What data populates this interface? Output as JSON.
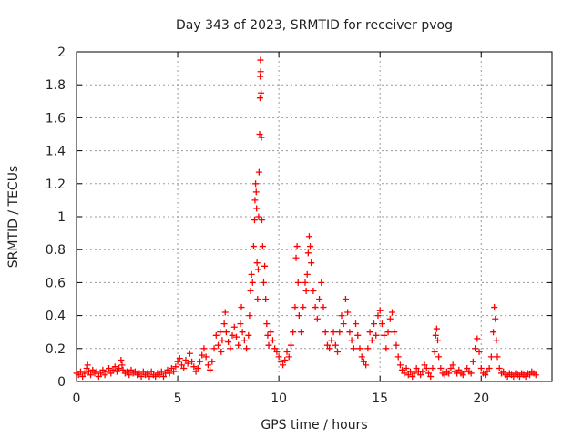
{
  "chart_data": {
    "type": "scatter",
    "title": "Day 343 of 2023, SRMTID for receiver pvog",
    "xlabel": "GPS time / hours",
    "ylabel": "SRMTID / TECUs",
    "xlim": [
      0,
      23.5
    ],
    "ylim": [
      0,
      2
    ],
    "xticks": [
      "0",
      "5",
      "10",
      "15",
      "20"
    ],
    "xtick_values": [
      0,
      5,
      10,
      15,
      20
    ],
    "yticks": [
      "0",
      "0.2",
      "0.4",
      "0.6",
      "0.8",
      "1",
      "1.2",
      "1.4",
      "1.6",
      "1.8",
      "2"
    ],
    "ytick_values": [
      0,
      0.2,
      0.4,
      0.6,
      0.8,
      1.0,
      1.2,
      1.4,
      1.6,
      1.8,
      2.0
    ],
    "grid": true,
    "marker": "+",
    "color": "#ff0000",
    "series": [
      {
        "name": "SRMTID",
        "points": [
          [
            0.0,
            0.05
          ],
          [
            0.1,
            0.04
          ],
          [
            0.2,
            0.06
          ],
          [
            0.3,
            0.03
          ],
          [
            0.4,
            0.05
          ],
          [
            0.5,
            0.08
          ],
          [
            0.55,
            0.1
          ],
          [
            0.6,
            0.06
          ],
          [
            0.7,
            0.04
          ],
          [
            0.8,
            0.07
          ],
          [
            0.9,
            0.05
          ],
          [
            1.0,
            0.06
          ],
          [
            1.1,
            0.03
          ],
          [
            1.2,
            0.05
          ],
          [
            1.3,
            0.07
          ],
          [
            1.4,
            0.04
          ],
          [
            1.5,
            0.06
          ],
          [
            1.6,
            0.08
          ],
          [
            1.7,
            0.05
          ],
          [
            1.8,
            0.07
          ],
          [
            1.9,
            0.09
          ],
          [
            2.0,
            0.06
          ],
          [
            2.1,
            0.08
          ],
          [
            2.2,
            0.13
          ],
          [
            2.25,
            0.1
          ],
          [
            2.3,
            0.07
          ],
          [
            2.4,
            0.05
          ],
          [
            2.5,
            0.06
          ],
          [
            2.6,
            0.04
          ],
          [
            2.7,
            0.07
          ],
          [
            2.8,
            0.05
          ],
          [
            2.9,
            0.06
          ],
          [
            3.0,
            0.04
          ],
          [
            3.1,
            0.05
          ],
          [
            3.2,
            0.03
          ],
          [
            3.3,
            0.06
          ],
          [
            3.4,
            0.04
          ],
          [
            3.5,
            0.05
          ],
          [
            3.6,
            0.03
          ],
          [
            3.7,
            0.06
          ],
          [
            3.8,
            0.04
          ],
          [
            3.9,
            0.03
          ],
          [
            4.0,
            0.05
          ],
          [
            4.1,
            0.04
          ],
          [
            4.2,
            0.06
          ],
          [
            4.3,
            0.03
          ],
          [
            4.4,
            0.05
          ],
          [
            4.5,
            0.07
          ],
          [
            4.6,
            0.05
          ],
          [
            4.7,
            0.08
          ],
          [
            4.8,
            0.06
          ],
          [
            4.9,
            0.09
          ],
          [
            5.0,
            0.12
          ],
          [
            5.1,
            0.14
          ],
          [
            5.2,
            0.1
          ],
          [
            5.3,
            0.08
          ],
          [
            5.4,
            0.13
          ],
          [
            5.5,
            0.11
          ],
          [
            5.6,
            0.17
          ],
          [
            5.7,
            0.12
          ],
          [
            5.8,
            0.09
          ],
          [
            5.9,
            0.06
          ],
          [
            6.0,
            0.08
          ],
          [
            6.1,
            0.12
          ],
          [
            6.2,
            0.16
          ],
          [
            6.3,
            0.2
          ],
          [
            6.4,
            0.15
          ],
          [
            6.5,
            0.1
          ],
          [
            6.6,
            0.07
          ],
          [
            6.7,
            0.12
          ],
          [
            6.8,
            0.2
          ],
          [
            6.9,
            0.28
          ],
          [
            7.0,
            0.22
          ],
          [
            7.1,
            0.3
          ],
          [
            7.15,
            0.18
          ],
          [
            7.2,
            0.25
          ],
          [
            7.3,
            0.35
          ],
          [
            7.35,
            0.42
          ],
          [
            7.4,
            0.3
          ],
          [
            7.5,
            0.24
          ],
          [
            7.6,
            0.2
          ],
          [
            7.7,
            0.28
          ],
          [
            7.8,
            0.33
          ],
          [
            7.9,
            0.27
          ],
          [
            8.0,
            0.22
          ],
          [
            8.1,
            0.35
          ],
          [
            8.15,
            0.45
          ],
          [
            8.2,
            0.3
          ],
          [
            8.3,
            0.25
          ],
          [
            8.4,
            0.2
          ],
          [
            8.5,
            0.28
          ],
          [
            8.55,
            0.4
          ],
          [
            8.6,
            0.55
          ],
          [
            8.65,
            0.65
          ],
          [
            8.7,
            0.6
          ],
          [
            8.75,
            0.82
          ],
          [
            8.8,
            0.98
          ],
          [
            8.82,
            1.1
          ],
          [
            8.85,
            1.2
          ],
          [
            8.88,
            1.15
          ],
          [
            8.9,
            1.05
          ],
          [
            8.92,
            0.72
          ],
          [
            8.95,
            0.5
          ],
          [
            8.98,
            0.68
          ],
          [
            9.0,
            1.0
          ],
          [
            9.02,
            1.27
          ],
          [
            9.05,
            1.5
          ],
          [
            9.07,
            1.72
          ],
          [
            9.08,
            1.85
          ],
          [
            9.09,
            1.95
          ],
          [
            9.1,
            1.88
          ],
          [
            9.12,
            1.75
          ],
          [
            9.14,
            1.48
          ],
          [
            9.16,
            0.98
          ],
          [
            9.2,
            0.82
          ],
          [
            9.25,
            0.6
          ],
          [
            9.3,
            0.7
          ],
          [
            9.35,
            0.5
          ],
          [
            9.4,
            0.35
          ],
          [
            9.45,
            0.28
          ],
          [
            9.5,
            0.22
          ],
          [
            9.6,
            0.3
          ],
          [
            9.7,
            0.25
          ],
          [
            9.8,
            0.2
          ],
          [
            9.9,
            0.18
          ],
          [
            10.0,
            0.15
          ],
          [
            10.1,
            0.12
          ],
          [
            10.2,
            0.1
          ],
          [
            10.3,
            0.13
          ],
          [
            10.4,
            0.18
          ],
          [
            10.5,
            0.15
          ],
          [
            10.6,
            0.22
          ],
          [
            10.7,
            0.3
          ],
          [
            10.8,
            0.45
          ],
          [
            10.85,
            0.75
          ],
          [
            10.9,
            0.82
          ],
          [
            10.95,
            0.6
          ],
          [
            11.0,
            0.4
          ],
          [
            11.1,
            0.3
          ],
          [
            11.2,
            0.45
          ],
          [
            11.3,
            0.6
          ],
          [
            11.35,
            0.55
          ],
          [
            11.4,
            0.65
          ],
          [
            11.45,
            0.78
          ],
          [
            11.5,
            0.88
          ],
          [
            11.55,
            0.82
          ],
          [
            11.6,
            0.72
          ],
          [
            11.7,
            0.55
          ],
          [
            11.8,
            0.45
          ],
          [
            11.9,
            0.38
          ],
          [
            12.0,
            0.5
          ],
          [
            12.1,
            0.6
          ],
          [
            12.2,
            0.45
          ],
          [
            12.3,
            0.3
          ],
          [
            12.4,
            0.22
          ],
          [
            12.5,
            0.2
          ],
          [
            12.6,
            0.25
          ],
          [
            12.7,
            0.3
          ],
          [
            12.8,
            0.22
          ],
          [
            12.9,
            0.18
          ],
          [
            13.0,
            0.3
          ],
          [
            13.1,
            0.4
          ],
          [
            13.2,
            0.35
          ],
          [
            13.3,
            0.5
          ],
          [
            13.4,
            0.42
          ],
          [
            13.5,
            0.3
          ],
          [
            13.6,
            0.25
          ],
          [
            13.7,
            0.2
          ],
          [
            13.8,
            0.35
          ],
          [
            13.9,
            0.28
          ],
          [
            14.0,
            0.2
          ],
          [
            14.1,
            0.15
          ],
          [
            14.2,
            0.12
          ],
          [
            14.3,
            0.1
          ],
          [
            14.4,
            0.2
          ],
          [
            14.5,
            0.3
          ],
          [
            14.6,
            0.25
          ],
          [
            14.7,
            0.35
          ],
          [
            14.8,
            0.28
          ],
          [
            14.9,
            0.4
          ],
          [
            15.0,
            0.43
          ],
          [
            15.1,
            0.35
          ],
          [
            15.2,
            0.28
          ],
          [
            15.3,
            0.2
          ],
          [
            15.4,
            0.3
          ],
          [
            15.5,
            0.38
          ],
          [
            15.6,
            0.42
          ],
          [
            15.7,
            0.3
          ],
          [
            15.8,
            0.22
          ],
          [
            15.9,
            0.15
          ],
          [
            16.0,
            0.1
          ],
          [
            16.1,
            0.07
          ],
          [
            16.2,
            0.05
          ],
          [
            16.3,
            0.08
          ],
          [
            16.4,
            0.04
          ],
          [
            16.5,
            0.06
          ],
          [
            16.6,
            0.03
          ],
          [
            16.7,
            0.05
          ],
          [
            16.8,
            0.08
          ],
          [
            16.9,
            0.06
          ],
          [
            17.0,
            0.04
          ],
          [
            17.1,
            0.06
          ],
          [
            17.2,
            0.1
          ],
          [
            17.3,
            0.08
          ],
          [
            17.4,
            0.05
          ],
          [
            17.5,
            0.03
          ],
          [
            17.6,
            0.08
          ],
          [
            17.7,
            0.18
          ],
          [
            17.75,
            0.28
          ],
          [
            17.8,
            0.32
          ],
          [
            17.85,
            0.25
          ],
          [
            17.9,
            0.15
          ],
          [
            18.0,
            0.08
          ],
          [
            18.1,
            0.05
          ],
          [
            18.2,
            0.04
          ],
          [
            18.3,
            0.06
          ],
          [
            18.4,
            0.05
          ],
          [
            18.5,
            0.08
          ],
          [
            18.6,
            0.1
          ],
          [
            18.7,
            0.06
          ],
          [
            18.8,
            0.05
          ],
          [
            18.9,
            0.07
          ],
          [
            19.0,
            0.05
          ],
          [
            19.1,
            0.04
          ],
          [
            19.2,
            0.06
          ],
          [
            19.3,
            0.08
          ],
          [
            19.4,
            0.06
          ],
          [
            19.5,
            0.05
          ],
          [
            19.6,
            0.12
          ],
          [
            19.7,
            0.2
          ],
          [
            19.8,
            0.26
          ],
          [
            19.9,
            0.18
          ],
          [
            20.0,
            0.08
          ],
          [
            20.1,
            0.05
          ],
          [
            20.2,
            0.04
          ],
          [
            20.3,
            0.06
          ],
          [
            20.4,
            0.08
          ],
          [
            20.5,
            0.15
          ],
          [
            20.6,
            0.3
          ],
          [
            20.65,
            0.45
          ],
          [
            20.7,
            0.38
          ],
          [
            20.75,
            0.25
          ],
          [
            20.8,
            0.15
          ],
          [
            20.9,
            0.08
          ],
          [
            21.0,
            0.05
          ],
          [
            21.1,
            0.06
          ],
          [
            21.2,
            0.04
          ],
          [
            21.3,
            0.03
          ],
          [
            21.4,
            0.05
          ],
          [
            21.5,
            0.04
          ],
          [
            21.6,
            0.03
          ],
          [
            21.7,
            0.05
          ],
          [
            21.8,
            0.04
          ],
          [
            21.9,
            0.03
          ],
          [
            22.0,
            0.05
          ],
          [
            22.1,
            0.04
          ],
          [
            22.2,
            0.03
          ],
          [
            22.3,
            0.05
          ],
          [
            22.4,
            0.04
          ],
          [
            22.5,
            0.06
          ],
          [
            22.6,
            0.05
          ],
          [
            22.7,
            0.04
          ]
        ]
      }
    ]
  }
}
